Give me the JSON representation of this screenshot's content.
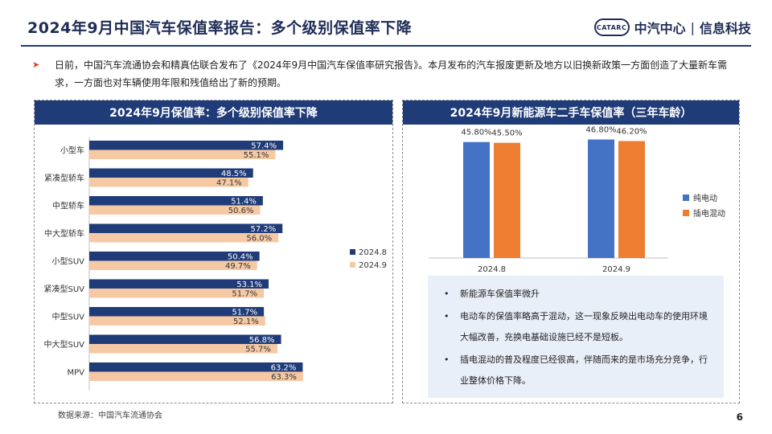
{
  "header": {
    "title": "2024年9月中国汽车保值率报告：多个级别保值率下降",
    "logo_mark": "CATARC",
    "logo_org": "中汽中心",
    "logo_sep": "|",
    "logo_unit": "信息科技"
  },
  "intro": {
    "arrow": "➤",
    "text": "日前，中国汽车流通协会和精真估联合发布了《2024年9月中国汽车保值率研究报告》。本月发布的汽车报废更新及地方以旧换新政策一方面创造了大量新车需求，一方面也对车辆使用年限和残值给出了新的预期。"
  },
  "colors": {
    "navy": "#1f3b78",
    "peach": "#f6c9a5",
    "blue": "#4472c4",
    "orange": "#ed7d31"
  },
  "chart_data": [
    {
      "type": "bar",
      "orientation": "horizontal",
      "title": "2024年9月保值率：多个级别保值率下降",
      "categories": [
        "小型车",
        "紧凑型轿车",
        "中型轿车",
        "中大型轿车",
        "小型SUV",
        "紧凑型SUV",
        "中型SUV",
        "中大型SUV",
        "MPV"
      ],
      "series": [
        {
          "name": "2024.8",
          "color": "#1f3b78",
          "values": [
            57.4,
            48.5,
            51.4,
            57.2,
            50.4,
            53.1,
            51.7,
            56.8,
            63.2
          ],
          "labels": [
            "57.4%",
            "48.5%",
            "51.4%",
            "57.2%",
            "50.4%",
            "53.1%",
            "51.7%",
            "56.8%",
            "63.2%"
          ]
        },
        {
          "name": "2024.9",
          "color": "#f6c9a5",
          "values": [
            55.1,
            47.1,
            50.6,
            56.0,
            49.7,
            51.7,
            52.1,
            55.7,
            63.3
          ],
          "labels": [
            "55.1%",
            "47.1%",
            "50.6%",
            "56.0%",
            "49.7%",
            "51.7%",
            "52.1%",
            "55.7%",
            "63.3%"
          ]
        }
      ],
      "legend_position": "right"
    },
    {
      "type": "bar",
      "title": "2024年9月新能源车二手车保值率（三年车龄）",
      "categories": [
        "2024.8",
        "2024.9"
      ],
      "series": [
        {
          "name": "纯电动",
          "color": "#4472c4",
          "values": [
            45.8,
            46.8
          ],
          "labels": [
            "45.80%",
            "46.80%"
          ]
        },
        {
          "name": "插电混动",
          "color": "#ed7d31",
          "values": [
            45.5,
            46.2
          ],
          "labels": [
            "45.50%",
            "46.20%"
          ]
        }
      ],
      "legend_position": "right"
    }
  ],
  "notes": {
    "bullet": "•",
    "items": [
      "新能源车保值率微升",
      "电动车的保值率略高于混动，这一现象反映出电动车的使用环境大幅改善，充换电基础设施已经不是短板。",
      "插电混动的普及程度已经很高，伴随而来的是市场充分竞争，行业整体价格下降。"
    ]
  },
  "footer": {
    "source": "数据来源：中国汽车流通协会",
    "page": "6"
  }
}
